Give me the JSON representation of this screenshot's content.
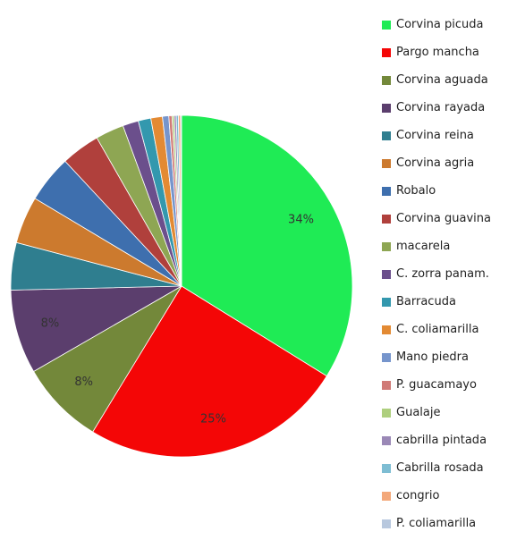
{
  "chart_data": {
    "type": "pie",
    "start_angle_deg": 0,
    "direction": "clockwise",
    "legend_position": "right",
    "categories": [
      "Corvina picuda",
      "Pargo mancha",
      "Corvina aguada",
      "Corvina rayada",
      "Corvina reina",
      "Corvina agria",
      "Robalo",
      "Corvina guavina",
      "macarela",
      "C. zorra panam.",
      "Barracuda",
      "C. coliamarilla",
      "Mano piedra",
      "P. guacamayo",
      "Gualaje",
      "cabrilla pintada",
      "Cabrilla rosada",
      "congrio",
      "P. coliamarilla"
    ],
    "values": [
      34,
      25,
      8,
      8,
      4.5,
      4.5,
      4.5,
      3.7,
      2.7,
      1.5,
      1.2,
      1.1,
      0.6,
      0.3,
      0.2,
      0.2,
      0.2,
      0.2,
      0.1
    ],
    "data_labels": [
      "34%",
      "25%",
      "8%",
      "8%",
      "",
      "",
      "",
      "",
      "",
      "",
      "",
      "",
      "",
      "",
      "",
      "",
      "",
      "",
      ""
    ],
    "colors": [
      "#1FEB55",
      "#F40606",
      "#73883A",
      "#5B3E6D",
      "#2F7E8F",
      "#CC7A2E",
      "#3E6FAE",
      "#B0403C",
      "#8EA653",
      "#6B4F8C",
      "#3398AE",
      "#E38A33",
      "#7695CC",
      "#D07A76",
      "#AECF7E",
      "#9A88B6",
      "#7EBDD3",
      "#F3A87A",
      "#B8C8DE"
    ]
  }
}
